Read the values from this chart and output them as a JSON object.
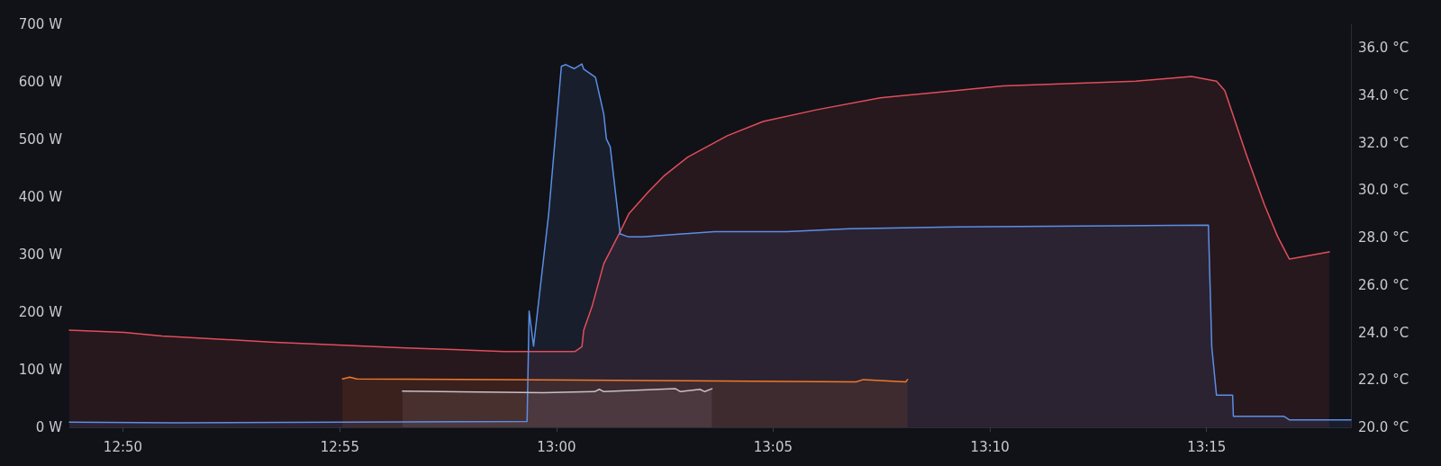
{
  "chart_data": {
    "type": "area",
    "marker": "none",
    "grid": false,
    "xlim": [
      12.8127,
      13.3055
    ],
    "xticks": [
      {
        "value": 12.8333,
        "label": "12:50"
      },
      {
        "value": 12.9167,
        "label": "12:55"
      },
      {
        "value": 13,
        "label": "13:00"
      },
      {
        "value": 13.0833,
        "label": "13:05"
      },
      {
        "value": 13.1667,
        "label": "13:10"
      },
      {
        "value": 13.25,
        "label": "13:15"
      }
    ],
    "ylim": [
      0,
      700
    ],
    "yticks": [
      {
        "value": 0,
        "label": "0 W"
      },
      {
        "value": 100,
        "label": "100 W"
      },
      {
        "value": 200,
        "label": "200 W"
      },
      {
        "value": 300,
        "label": "300 W"
      },
      {
        "value": 400,
        "label": "400 W"
      },
      {
        "value": 500,
        "label": "500 W"
      },
      {
        "value": 600,
        "label": "600 W"
      },
      {
        "value": 700,
        "label": "700 W"
      }
    ],
    "y2lim": [
      20,
      37
    ],
    "y2ticks": [
      {
        "value": 20,
        "label": "20.0 °C"
      },
      {
        "value": 22,
        "label": "22.0 °C"
      },
      {
        "value": 24,
        "label": "24.0 °C"
      },
      {
        "value": 26,
        "label": "26.0 °C"
      },
      {
        "value": 28,
        "label": "28.0 °C"
      },
      {
        "value": 30,
        "label": "30.0 °C"
      },
      {
        "value": 32,
        "label": "32.0 °C"
      },
      {
        "value": 34,
        "label": "34.0 °C"
      },
      {
        "value": 36,
        "label": "36.0 °C"
      }
    ],
    "series": [
      {
        "color": "#e24d5c",
        "axis": "y2",
        "x": [
          12.8127,
          12.8338,
          12.8483,
          12.89,
          12.942,
          12.98,
          13.0072,
          13.0098,
          13.0105,
          13.0137,
          13.0182,
          13.0245,
          13.0278,
          13.0355,
          13.0413,
          13.0505,
          13.0657,
          13.0795,
          13.1003,
          13.1245,
          13.1533,
          13.1717,
          13.2227,
          13.2442,
          13.2538,
          13.257,
          13.2653,
          13.2722,
          13.2773,
          13.2818,
          13.2972
        ],
        "values": [
          24.1,
          24.0,
          23.85,
          23.6,
          23.35,
          23.2,
          23.2,
          23.4,
          24.1,
          25.1,
          26.9,
          28.25,
          29.0,
          29.95,
          30.6,
          31.4,
          32.3,
          32.9,
          33.4,
          33.9,
          34.2,
          34.4,
          34.6,
          34.8,
          34.6,
          34.2,
          31.5,
          29.4,
          28.05,
          27.1,
          27.4
        ]
      },
      {
        "color": "#5b8ee6",
        "x": [
          12.8127,
          12.854,
          12.9887,
          12.9895,
          12.9912,
          12.997,
          13.0019,
          13.0036,
          13.0068,
          13.0098,
          13.0105,
          13.015,
          13.0182,
          13.0192,
          13.0207,
          13.0245,
          13.0275,
          13.0332,
          13.0608,
          13.0885,
          13.1128,
          13.1533,
          13.2507,
          13.252,
          13.2538,
          13.26,
          13.2603,
          13.2798,
          13.2818,
          13.3055
        ],
        "values": [
          9,
          8,
          10,
          202,
          141,
          370,
          627,
          630,
          623,
          631,
          622,
          608,
          544,
          501,
          487,
          336,
          331,
          331,
          340,
          340,
          345,
          348,
          351,
          139,
          56,
          56,
          19,
          19,
          13,
          13
        ]
      },
      {
        "color": "#f0782a",
        "x": [
          12.9177,
          12.9205,
          12.9233,
          12.98,
          13.1152,
          13.118,
          13.1343,
          13.135
        ],
        "values": [
          84,
          87,
          84,
          83,
          79,
          83,
          79,
          83
        ]
      },
      {
        "color": "#c8bfc8",
        "x": [
          12.9408,
          12.995,
          13.0147,
          13.0165,
          13.0182,
          13.0458,
          13.0477,
          13.0552,
          13.057,
          13.0598
        ],
        "values": [
          63,
          60,
          62,
          66,
          62,
          67,
          62,
          66,
          62,
          67
        ]
      }
    ]
  }
}
